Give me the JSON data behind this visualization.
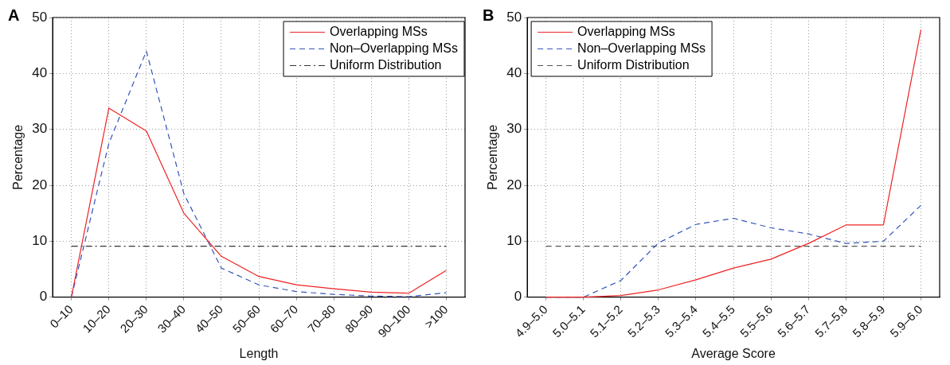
{
  "chart_data": [
    {
      "type": "line",
      "annotations": [
        "A"
      ],
      "xlabel": "Length",
      "ylabel": "Percentage",
      "categories": [
        "0–10",
        "10–20",
        "20–30",
        "30–40",
        "40–50",
        "50–60",
        "60–70",
        "70–80",
        "80–90",
        "90–100",
        ">100"
      ],
      "ylim": [
        0,
        50
      ],
      "yticks": [
        0,
        10,
        20,
        30,
        40,
        50
      ],
      "grid": true,
      "legend": "top right",
      "marker": "none",
      "series": [
        {
          "name": "Overlapping MSs",
          "color": "#ee2222",
          "line_style": "solid",
          "values": [
            0,
            33.8,
            29.7,
            15,
            7.3,
            3.7,
            2.2,
            1.5,
            0.9,
            0.7,
            4.8
          ]
        },
        {
          "name": "Non–Overlapping MSs",
          "color": "#3355bb",
          "line_style": "dashed",
          "values": [
            0,
            27.5,
            44,
            18.5,
            5.2,
            2.2,
            1.0,
            0.5,
            0.2,
            0.1,
            0.8
          ]
        },
        {
          "name": "Uniform Distribution",
          "color": "#333333",
          "line_style": "dashdot",
          "values": [
            9.1,
            9.1,
            9.1,
            9.1,
            9.1,
            9.1,
            9.1,
            9.1,
            9.1,
            9.1,
            9.1
          ]
        }
      ]
    },
    {
      "type": "line",
      "annotations": [
        "B"
      ],
      "xlabel": "Average Score",
      "ylabel": "Percentage",
      "categories": [
        "4.9–5.0",
        "5.0–5.1",
        "5.1–5.2",
        "5.2–5.3",
        "5.3–5.4",
        "5.4–5.5",
        "5.5–5.6",
        "5.6–5.7",
        "5.7–5.8",
        "5.8–5.9",
        "5.9–6.0"
      ],
      "ylim": [
        0,
        50
      ],
      "yticks": [
        0,
        10,
        20,
        30,
        40,
        50
      ],
      "grid": true,
      "legend": "top left",
      "marker": "none",
      "series": [
        {
          "name": "Overlapping MSs",
          "color": "#ee2222",
          "line_style": "solid",
          "values": [
            0,
            0,
            0.3,
            1.3,
            3.1,
            5.2,
            6.8,
            9.6,
            12.9,
            12.9,
            47.8
          ]
        },
        {
          "name": "Non–Overlapping MSs",
          "color": "#3355bb",
          "line_style": "dashed",
          "values": [
            0,
            0,
            3,
            9.7,
            13,
            14.1,
            12.4,
            11.3,
            9.6,
            10,
            16.4
          ]
        },
        {
          "name": "Uniform Distribution",
          "color": "#555555",
          "line_style": "dashed",
          "values": [
            9.1,
            9.1,
            9.1,
            9.1,
            9.1,
            9.1,
            9.1,
            9.1,
            9.1,
            9.1,
            9.1
          ]
        }
      ]
    }
  ]
}
